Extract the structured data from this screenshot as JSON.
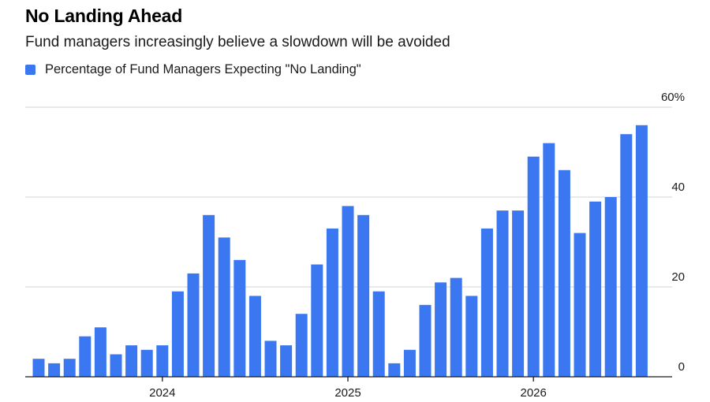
{
  "chart_data": {
    "type": "bar",
    "title": "No Landing Ahead",
    "subtitle": "Fund managers increasingly believe a slowdown will be avoided",
    "series": [
      {
        "name": "Percentage of Fund Managers Expecting \"No Landing\"",
        "color": "#3a77f0",
        "values": [
          4,
          3,
          4,
          9,
          11,
          5,
          7,
          6,
          7,
          19,
          23,
          36,
          31,
          26,
          18,
          8,
          7,
          14,
          25,
          33,
          38,
          36,
          19,
          3,
          6,
          16,
          21,
          22,
          18,
          33,
          37,
          37,
          49,
          52,
          46,
          32,
          39,
          40,
          54,
          56
        ]
      }
    ],
    "ylim": [
      0,
      60
    ],
    "yticks": [
      0,
      20,
      40,
      60
    ],
    "ytick_labels": [
      "0",
      "20",
      "40",
      "60%"
    ],
    "xtick_labels": [
      {
        "label": "2024",
        "bar_index": 8
      },
      {
        "label": "2025",
        "bar_index": 20
      },
      {
        "label": "2026",
        "bar_index": 32
      }
    ],
    "grid": true,
    "legend_position": "top-left"
  }
}
